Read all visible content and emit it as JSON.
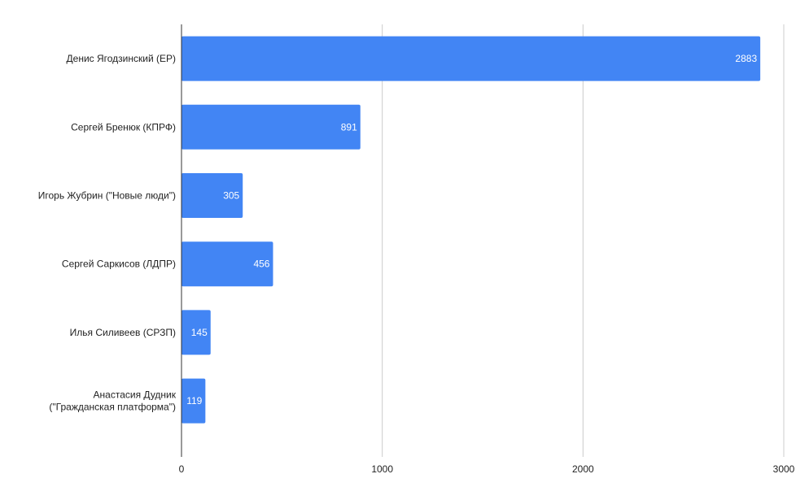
{
  "chart_data": {
    "type": "bar",
    "orientation": "horizontal",
    "title": "",
    "xlabel": "",
    "ylabel": "",
    "categories": [
      "Денис Ягодзинский (ЕР)",
      "Сергей Бренюк (КПРФ)",
      "Игорь Жубрин (\"Новые люди\")",
      "Сергей Саркисов (ЛДПР)",
      "Илья Силивеев (СРЗП)",
      "Анастасия Дудник (\"Гражданская платформа\")"
    ],
    "category_lines": [
      [
        "Денис Ягодзинский (ЕР)"
      ],
      [
        "Сергей Бренюк (КПРФ)"
      ],
      [
        "Игорь Жубрин (\"Новые люди\")"
      ],
      [
        "Сергей Саркисов (ЛДПР)"
      ],
      [
        "Илья Силивеев (СРЗП)"
      ],
      [
        "Анастасия Дудник",
        "(\"Гражданская платформа\")"
      ]
    ],
    "values": [
      2883,
      891,
      305,
      456,
      145,
      119
    ],
    "xlim": [
      0,
      3000
    ],
    "x_ticks": [
      0,
      1000,
      2000,
      3000
    ],
    "grid": true,
    "legend": "none",
    "bar_color": "#4285F4",
    "gridline_color": "#cccccc"
  }
}
